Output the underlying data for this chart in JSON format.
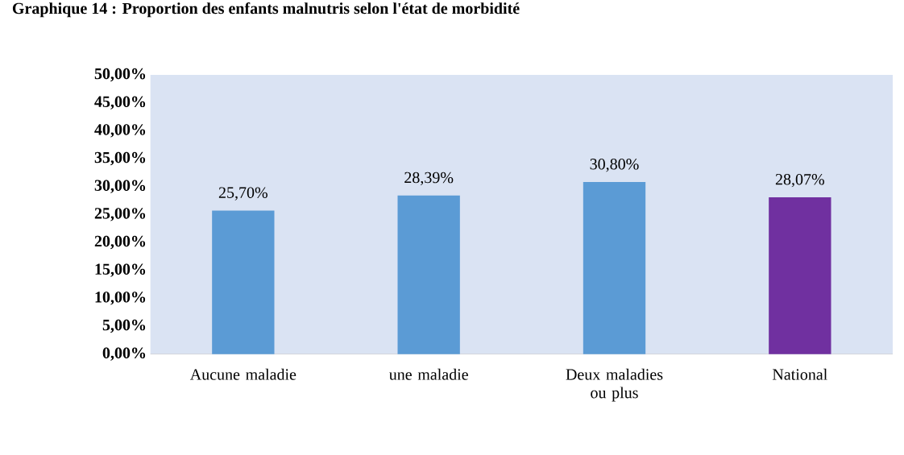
{
  "chart_data": {
    "type": "bar",
    "title": "Graphique 14 : Proportion des enfants malnutris selon l'état de morbidité",
    "categories": [
      "Aucune maladie",
      "une maladie",
      "Deux maladies ou plus",
      "National"
    ],
    "values": [
      25.7,
      28.39,
      30.8,
      28.07
    ],
    "colors": [
      "#5b9bd5",
      "#5b9bd5",
      "#5b9bd5",
      "#7030a0"
    ],
    "value_labels": [
      "25,70%",
      "28,39%",
      "30,80%",
      "28,07%"
    ],
    "ylim": [
      0,
      50
    ],
    "yticks": [
      {
        "value": 0,
        "label": "0,00%"
      },
      {
        "value": 5,
        "label": "5,00%"
      },
      {
        "value": 10,
        "label": "10,00%"
      },
      {
        "value": 15,
        "label": "15,00%"
      },
      {
        "value": 20,
        "label": "20,00%"
      },
      {
        "value": 25,
        "label": "25,00%"
      },
      {
        "value": 30,
        "label": "30,00%"
      },
      {
        "value": 35,
        "label": "35,00%"
      },
      {
        "value": 40,
        "label": "40,00%"
      },
      {
        "value": 45,
        "label": "45,00%"
      },
      {
        "value": 50,
        "label": "50,00%"
      }
    ],
    "grid": false
  }
}
